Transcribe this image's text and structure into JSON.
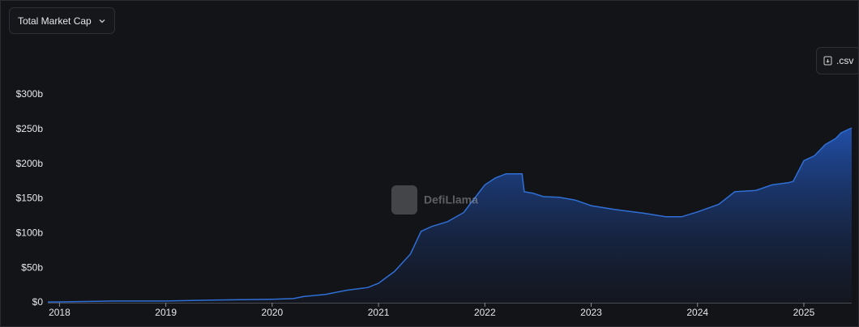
{
  "controls": {
    "dropdown": "Total Market Cap",
    "csv": ".csv"
  },
  "chart_data": {
    "type": "area",
    "watermark": "DefiLlama",
    "color": "#2f6fd6",
    "x": [
      2017.89,
      2018.0,
      2018.5,
      2019.0,
      2019.5,
      2020.0,
      2020.2,
      2020.3,
      2020.5,
      2020.7,
      2020.9,
      2021.0,
      2021.15,
      2021.3,
      2021.4,
      2021.5,
      2021.65,
      2021.8,
      2021.9,
      2022.0,
      2022.1,
      2022.2,
      2022.35,
      2022.37,
      2022.45,
      2022.55,
      2022.7,
      2022.85,
      2023.0,
      2023.2,
      2023.5,
      2023.7,
      2023.85,
      2024.0,
      2024.2,
      2024.35,
      2024.55,
      2024.7,
      2024.85,
      2024.9,
      2025.0,
      2025.1,
      2025.2,
      2025.3,
      2025.35,
      2025.45
    ],
    "values": [
      1.0,
      1.2,
      2.5,
      2.5,
      4,
      5,
      6,
      9,
      12,
      18,
      22,
      28,
      45,
      70,
      103,
      110,
      117,
      130,
      150,
      170,
      180,
      186,
      186,
      160,
      158,
      153,
      152,
      148,
      140,
      135,
      129,
      124,
      124,
      131,
      142,
      160,
      162,
      170,
      173,
      175,
      205,
      212,
      228,
      237,
      245,
      252
    ],
    "xlim": [
      2017.89,
      2025.45
    ],
    "xticks": [
      2018,
      2019,
      2020,
      2021,
      2022,
      2023,
      2024,
      2025
    ],
    "ylim": [
      0,
      300
    ],
    "yticks": [
      {
        "value": 0,
        "label": "$0"
      },
      {
        "value": 50,
        "label": "$50b"
      },
      {
        "value": 100,
        "label": "$100b"
      },
      {
        "value": 150,
        "label": "$150b"
      },
      {
        "value": 200,
        "label": "$200b"
      },
      {
        "value": 250,
        "label": "$250b"
      },
      {
        "value": 300,
        "label": "$300b"
      }
    ],
    "grid": false
  }
}
